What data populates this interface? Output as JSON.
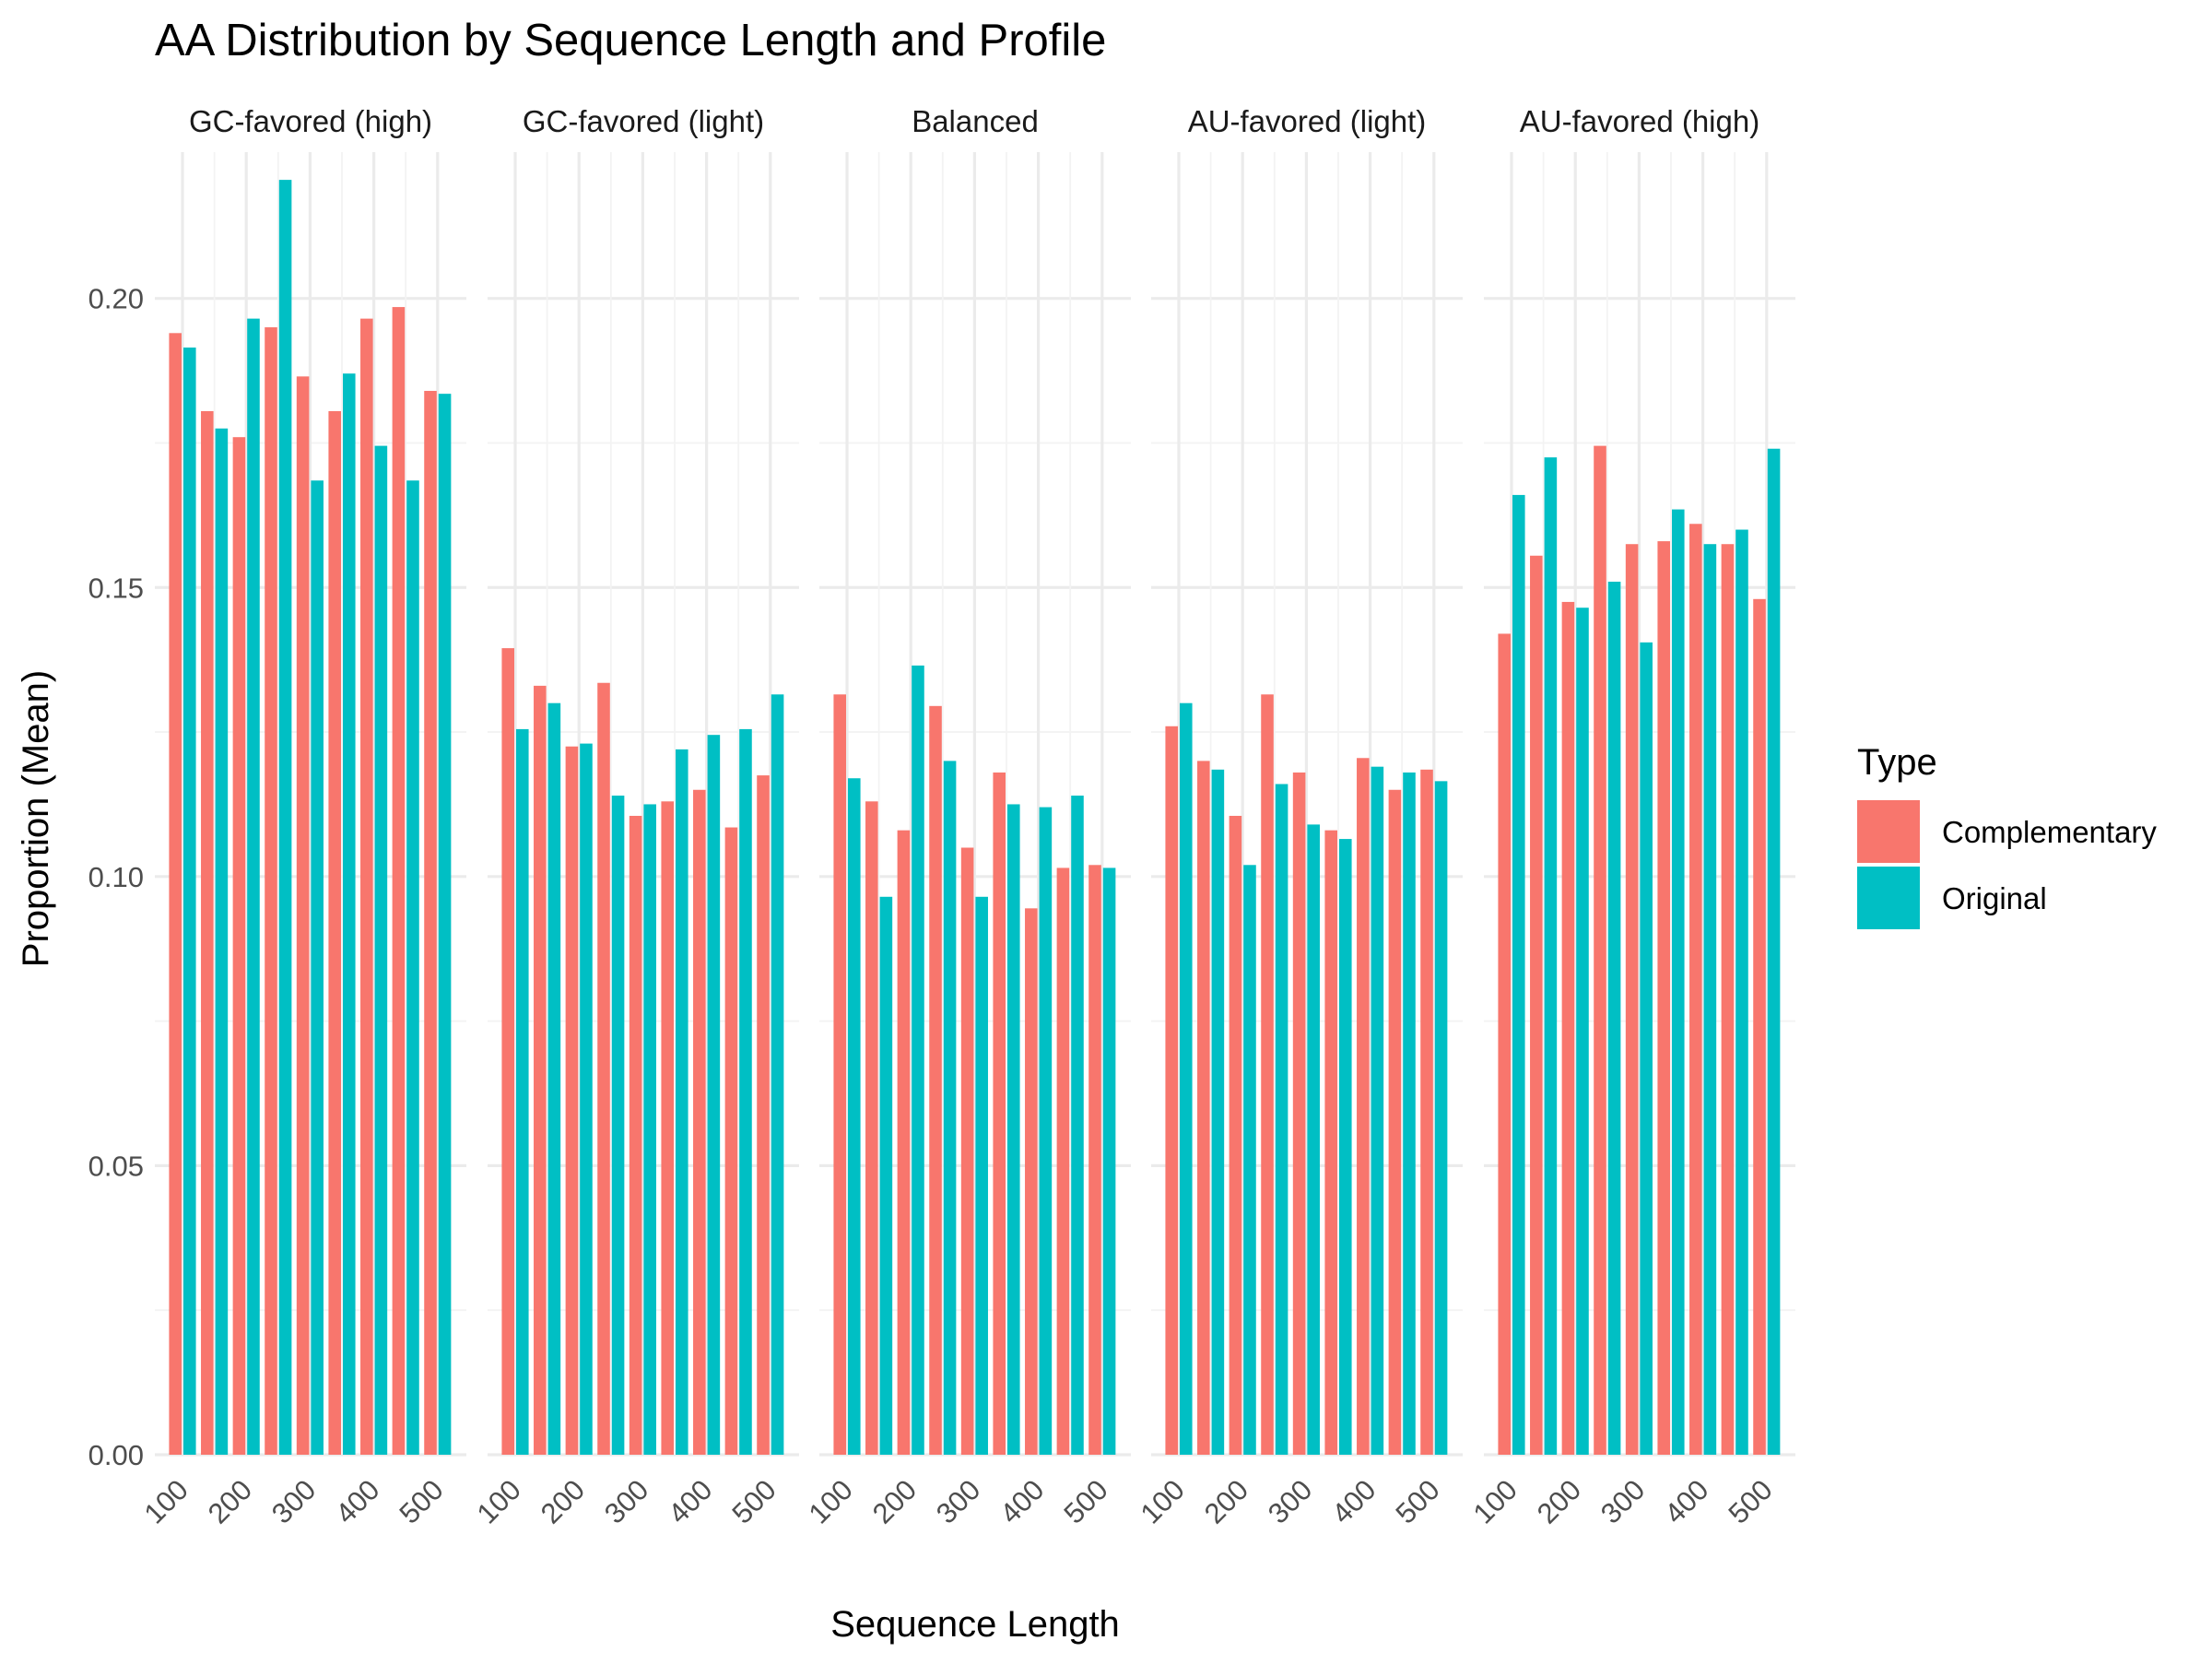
{
  "chart_data": {
    "type": "bar",
    "title": "AA Distribution by Sequence Length and Profile",
    "xlabel": "Sequence Length",
    "ylabel": "Proportion (Mean)",
    "ylim": [
      0,
      0.2253
    ],
    "yticks": [
      0.0,
      0.05,
      0.1,
      0.15,
      0.2
    ],
    "ytick_labels": [
      "0.00",
      "0.05",
      "0.10",
      "0.15",
      "0.20"
    ],
    "categories": [
      100,
      150,
      200,
      250,
      300,
      350,
      400,
      450,
      500
    ],
    "xtick_labels": [
      "100",
      "200",
      "300",
      "400",
      "500"
    ],
    "xtick_values": [
      100,
      200,
      300,
      400,
      500
    ],
    "grid": true,
    "legend": {
      "title": "Type",
      "position": "right",
      "entries": [
        "Complementary",
        "Original"
      ]
    },
    "colors": {
      "Complementary": "#F8766D",
      "Original": "#00BFC4"
    },
    "panels": [
      {
        "name": "GC-favored (high)",
        "series": [
          {
            "name": "Complementary",
            "values": [
              0.194,
              0.1805,
              0.176,
              0.195,
              0.1865,
              0.1805,
              0.1965,
              0.1985,
              0.184
            ]
          },
          {
            "name": "Original",
            "values": [
              0.1915,
              0.1775,
              0.1965,
              0.2205,
              0.1685,
              0.187,
              0.1745,
              0.1685,
              0.1835
            ]
          }
        ]
      },
      {
        "name": "GC-favored (light)",
        "series": [
          {
            "name": "Complementary",
            "values": [
              0.1395,
              0.133,
              0.1225,
              0.1335,
              0.1105,
              0.113,
              0.115,
              0.1085,
              0.1175
            ]
          },
          {
            "name": "Original",
            "values": [
              0.1255,
              0.13,
              0.123,
              0.114,
              0.1125,
              0.122,
              0.1245,
              0.1255,
              0.1315
            ]
          }
        ]
      },
      {
        "name": "Balanced",
        "series": [
          {
            "name": "Complementary",
            "values": [
              0.1315,
              0.113,
              0.108,
              0.1295,
              0.105,
              0.118,
              0.0945,
              0.1015,
              0.102
            ]
          },
          {
            "name": "Original",
            "values": [
              0.117,
              0.0965,
              0.1365,
              0.12,
              0.0965,
              0.1125,
              0.112,
              0.114,
              0.1015
            ]
          }
        ]
      },
      {
        "name": "AU-favored (light)",
        "series": [
          {
            "name": "Complementary",
            "values": [
              0.126,
              0.12,
              0.1105,
              0.1315,
              0.118,
              0.108,
              0.1205,
              0.115,
              0.1185
            ]
          },
          {
            "name": "Original",
            "values": [
              0.13,
              0.1185,
              0.102,
              0.116,
              0.109,
              0.1065,
              0.119,
              0.118,
              0.1165
            ]
          }
        ]
      },
      {
        "name": "AU-favored (high)",
        "series": [
          {
            "name": "Complementary",
            "values": [
              0.142,
              0.1555,
              0.1475,
              0.1745,
              0.1575,
              0.158,
              0.161,
              0.1575,
              0.148
            ]
          },
          {
            "name": "Original",
            "values": [
              0.166,
              0.1725,
              0.1465,
              0.151,
              0.1405,
              0.1635,
              0.1575,
              0.16,
              0.174
            ]
          }
        ]
      }
    ]
  }
}
